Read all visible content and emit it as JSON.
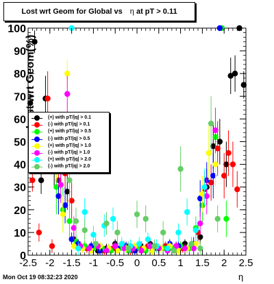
{
  "header": {
    "title_prefix": "Lost wrt Geom for Global vs",
    "title_eta": "η",
    "title_suffix": "at pT > 0.11"
  },
  "timestamp": "Mon Oct 19 08:32:23 2020",
  "chart_data": {
    "type": "scatter",
    "xlabel": "η",
    "ylabel": "Lost wrt Geom(%)",
    "xlim": [
      -2.5,
      2.5
    ],
    "ylim": [
      0,
      100
    ],
    "x_ticks": [
      "-2.5",
      "-2",
      "-1.5",
      "-1",
      "-0.5",
      "0",
      "0.5",
      "1",
      "1.5",
      "2",
      "2.5"
    ],
    "y_ticks": [
      "0",
      "10",
      "20",
      "30",
      "40",
      "50",
      "60",
      "70",
      "80",
      "90",
      "100"
    ],
    "legend_position": "left-middle",
    "series": [
      {
        "name": "(+) with pT/|q| > 0.1",
        "color": "#000000",
        "x": [
          -2.45,
          -2.35,
          -2.2,
          -2.1,
          -1.9,
          -1.75,
          -1.6,
          -1.45,
          -1.3,
          -1.1,
          -0.9,
          -0.7,
          -0.5,
          -0.3,
          -0.1,
          0.1,
          0.3,
          0.5,
          0.7,
          0.9,
          1.1,
          1.3,
          1.45,
          1.6,
          1.75,
          1.9,
          2.05,
          2.15,
          2.25,
          2.35,
          2.45
        ],
        "y": [
          67,
          94,
          33,
          69,
          40,
          37,
          28,
          7,
          4,
          3,
          2,
          3,
          5,
          4,
          3,
          4,
          5,
          3,
          3,
          4,
          5,
          3,
          8,
          30,
          48,
          50,
          40,
          79,
          80,
          100,
          75
        ],
        "err": [
          4,
          5,
          6,
          10,
          10,
          8,
          8,
          3,
          2,
          2,
          2,
          2,
          2,
          2,
          2,
          2,
          2,
          2,
          2,
          2,
          2,
          2,
          3,
          8,
          10,
          10,
          10,
          8,
          8,
          1,
          6
        ]
      },
      {
        "name": "(-) with pT/|q| > 0.1",
        "color": "#ff0000",
        "x": [
          -2.4,
          -2.25,
          -2.05,
          -1.95,
          -1.8,
          -1.65,
          -1.5,
          -1.35,
          -1.15,
          -0.95,
          -0.75,
          -0.55,
          -0.35,
          -0.15,
          0.05,
          0.25,
          0.45,
          0.65,
          0.85,
          1.05,
          1.25,
          1.4,
          1.55,
          1.7,
          1.85,
          2.0,
          2.1,
          2.2,
          2.3
        ],
        "y": [
          33,
          10,
          69,
          4,
          33,
          36,
          24,
          5,
          3,
          4,
          2,
          3,
          4,
          2,
          3,
          4,
          3,
          4,
          3,
          3,
          4,
          10,
          29,
          32,
          47,
          35,
          45,
          40,
          29
        ],
        "err": [
          5,
          4,
          12,
          3,
          10,
          8,
          8,
          2,
          2,
          2,
          2,
          2,
          2,
          2,
          2,
          2,
          2,
          2,
          2,
          2,
          2,
          4,
          8,
          8,
          12,
          10,
          10,
          10,
          8
        ]
      },
      {
        "name": "(+) with pT/|q| > 0.5",
        "color": "#00ff00",
        "x": [
          -1.85,
          -1.7,
          -1.55,
          -1.4,
          -1.2,
          -1.0,
          -0.8,
          -0.6,
          -0.4,
          -0.2,
          0.0,
          0.2,
          0.4,
          0.6,
          0.8,
          1.0,
          1.2,
          1.35,
          1.5,
          1.65,
          1.8,
          1.95,
          2.05
        ],
        "y": [
          30,
          20,
          15,
          6,
          4,
          3,
          3,
          2,
          3,
          2,
          3,
          2,
          4,
          3,
          3,
          4,
          3,
          12,
          22,
          45,
          52,
          100,
          16
        ],
        "err": [
          12,
          10,
          8,
          3,
          2,
          2,
          2,
          2,
          2,
          2,
          2,
          2,
          2,
          2,
          2,
          2,
          2,
          5,
          8,
          12,
          12,
          1,
          8
        ]
      },
      {
        "name": "(-) with pT/|q| > 0.5",
        "color": "#0000ff",
        "x": [
          -1.8,
          -1.65,
          -1.5,
          -1.35,
          -1.25,
          -1.05,
          -0.85,
          -0.65,
          -0.45,
          -0.25,
          -0.05,
          0.15,
          0.35,
          0.55,
          0.75,
          0.95,
          1.15,
          1.3,
          1.45,
          1.6,
          1.75,
          1.9
        ],
        "y": [
          26,
          22,
          7,
          5,
          3,
          4,
          2,
          3,
          3,
          4,
          2,
          3,
          2,
          3,
          5,
          4,
          3,
          5,
          25,
          33,
          35,
          100
        ],
        "err": [
          8,
          8,
          3,
          2,
          2,
          2,
          2,
          2,
          2,
          2,
          2,
          2,
          2,
          2,
          2,
          2,
          2,
          3,
          8,
          8,
          10,
          1
        ]
      },
      {
        "name": "(+) with pT/|q| > 1.0",
        "color": "#ffff00",
        "x": [
          -1.85,
          -1.7,
          -1.6,
          -1.45,
          -1.25,
          -1.05,
          -0.85,
          -0.65,
          -0.45,
          -0.25,
          -0.05,
          0.15,
          0.35,
          0.55,
          0.75,
          0.95,
          1.15,
          1.35,
          1.5,
          1.65,
          1.8
        ],
        "y": [
          43,
          18,
          80,
          4,
          3,
          2,
          4,
          3,
          2,
          3,
          4,
          3,
          2,
          3,
          4,
          2,
          3,
          5,
          27,
          45,
          40
        ],
        "err": [
          10,
          8,
          6,
          2,
          2,
          2,
          2,
          2,
          2,
          2,
          2,
          2,
          2,
          2,
          2,
          2,
          2,
          3,
          8,
          12,
          10
        ]
      },
      {
        "name": "(-) with pT/|q| > 1.0",
        "color": "#ff00ff",
        "x": [
          -1.75,
          -1.6,
          -1.45,
          -1.3,
          -1.1,
          -0.9,
          -0.7,
          -0.5,
          -0.3,
          -0.1,
          0.1,
          0.3,
          0.5,
          0.7,
          0.9,
          1.1,
          1.3,
          1.45,
          1.6,
          1.8
        ],
        "y": [
          31,
          71,
          12,
          4,
          3,
          4,
          2,
          4,
          3,
          3,
          2,
          4,
          3,
          2,
          4,
          3,
          3,
          14,
          26,
          55
        ],
        "err": [
          8,
          8,
          5,
          2,
          2,
          2,
          2,
          2,
          2,
          2,
          2,
          2,
          2,
          2,
          2,
          2,
          2,
          5,
          8,
          10
        ]
      },
      {
        "name": "(+) with pT/|q| > 2.0",
        "color": "#00ffff",
        "x": [
          -1.5,
          -1.35,
          -1.2,
          -1.0,
          -0.75,
          -0.55,
          -0.35,
          -0.15,
          0.05,
          0.25,
          0.45,
          0.7,
          0.95,
          1.15,
          1.35,
          1.55
        ],
        "y": [
          100,
          3,
          19,
          9,
          13,
          16,
          5,
          4,
          5,
          7,
          4,
          3,
          10,
          19,
          11,
          30
        ],
        "err": [
          1,
          3,
          6,
          4,
          5,
          5,
          3,
          3,
          3,
          3,
          3,
          3,
          4,
          6,
          5,
          8
        ]
      },
      {
        "name": "(-) with pT/|q| > 2.0",
        "color": "#66cc66",
        "x": [
          -1.55,
          -1.4,
          -1.2,
          -0.95,
          -0.7,
          -0.45,
          -0.2,
          0.0,
          0.2,
          0.4,
          0.6,
          0.85,
          1.0,
          1.25,
          1.45,
          1.7,
          1.85
        ],
        "y": [
          33,
          15,
          11,
          5,
          14,
          10,
          3,
          18,
          16,
          4,
          10,
          2,
          38,
          5,
          3,
          58,
          16
        ],
        "err": [
          10,
          6,
          5,
          3,
          5,
          5,
          3,
          6,
          6,
          3,
          5,
          2,
          10,
          3,
          3,
          12,
          6
        ]
      }
    ]
  }
}
